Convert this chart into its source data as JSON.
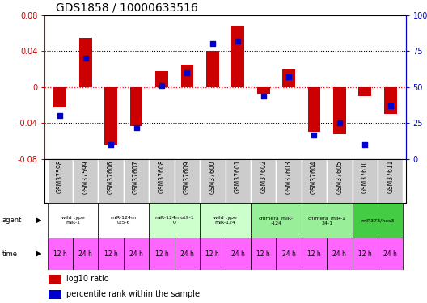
{
  "title": "GDS1858 / 10000633516",
  "samples": [
    "GSM37598",
    "GSM37599",
    "GSM37606",
    "GSM37607",
    "GSM37608",
    "GSM37609",
    "GSM37600",
    "GSM37601",
    "GSM37602",
    "GSM37603",
    "GSM37604",
    "GSM37605",
    "GSM37610",
    "GSM37611"
  ],
  "log10_ratio": [
    -0.023,
    0.055,
    -0.065,
    -0.043,
    0.018,
    0.025,
    0.04,
    0.068,
    -0.007,
    0.02,
    -0.05,
    -0.052,
    -0.01,
    -0.03
  ],
  "percentile_rank": [
    30,
    70,
    10,
    22,
    51,
    60,
    80,
    82,
    44,
    57,
    17,
    25,
    10,
    37
  ],
  "ylim_left": [
    -0.08,
    0.08
  ],
  "ylim_right": [
    0,
    100
  ],
  "yticks_left": [
    -0.08,
    -0.04,
    0.0,
    0.04,
    0.08
  ],
  "yticks_right": [
    0,
    25,
    50,
    75,
    100
  ],
  "bar_color": "#cc0000",
  "dot_color": "#0000cc",
  "agent_groups": [
    {
      "label": "wild type\nmiR-1",
      "cols": [
        0,
        1
      ],
      "color": "#ffffff"
    },
    {
      "label": "miR-124m\nut5-6",
      "cols": [
        2,
        3
      ],
      "color": "#ffffff"
    },
    {
      "label": "miR-124mut9-1\n0",
      "cols": [
        4,
        5
      ],
      "color": "#ccffcc"
    },
    {
      "label": "wild type\nmiR-124",
      "cols": [
        6,
        7
      ],
      "color": "#ccffcc"
    },
    {
      "label": "chimera_miR-\n-124",
      "cols": [
        8,
        9
      ],
      "color": "#99ee99"
    },
    {
      "label": "chimera_miR-1\n24-1",
      "cols": [
        10,
        11
      ],
      "color": "#99ee99"
    },
    {
      "label": "miR373/hes3",
      "cols": [
        12,
        13
      ],
      "color": "#44cc44"
    }
  ],
  "time_labels": [
    "12 h",
    "24 h",
    "12 h",
    "24 h",
    "12 h",
    "24 h",
    "12 h",
    "24 h",
    "12 h",
    "24 h",
    "12 h",
    "24 h",
    "12 h",
    "24 h"
  ],
  "time_color": "#ff66ff",
  "gsm_bg_color": "#cccccc",
  "left_axis_color": "#cc0000",
  "right_axis_color": "#0000cc",
  "legend_red": "log10 ratio",
  "legend_blue": "percentile rank within the sample",
  "ytick_left_labels": [
    "-0.08",
    "-0.04",
    "0",
    "0.04",
    "0.08"
  ],
  "ytick_right_labels": [
    "0",
    "25",
    "50",
    "75",
    "100%"
  ]
}
